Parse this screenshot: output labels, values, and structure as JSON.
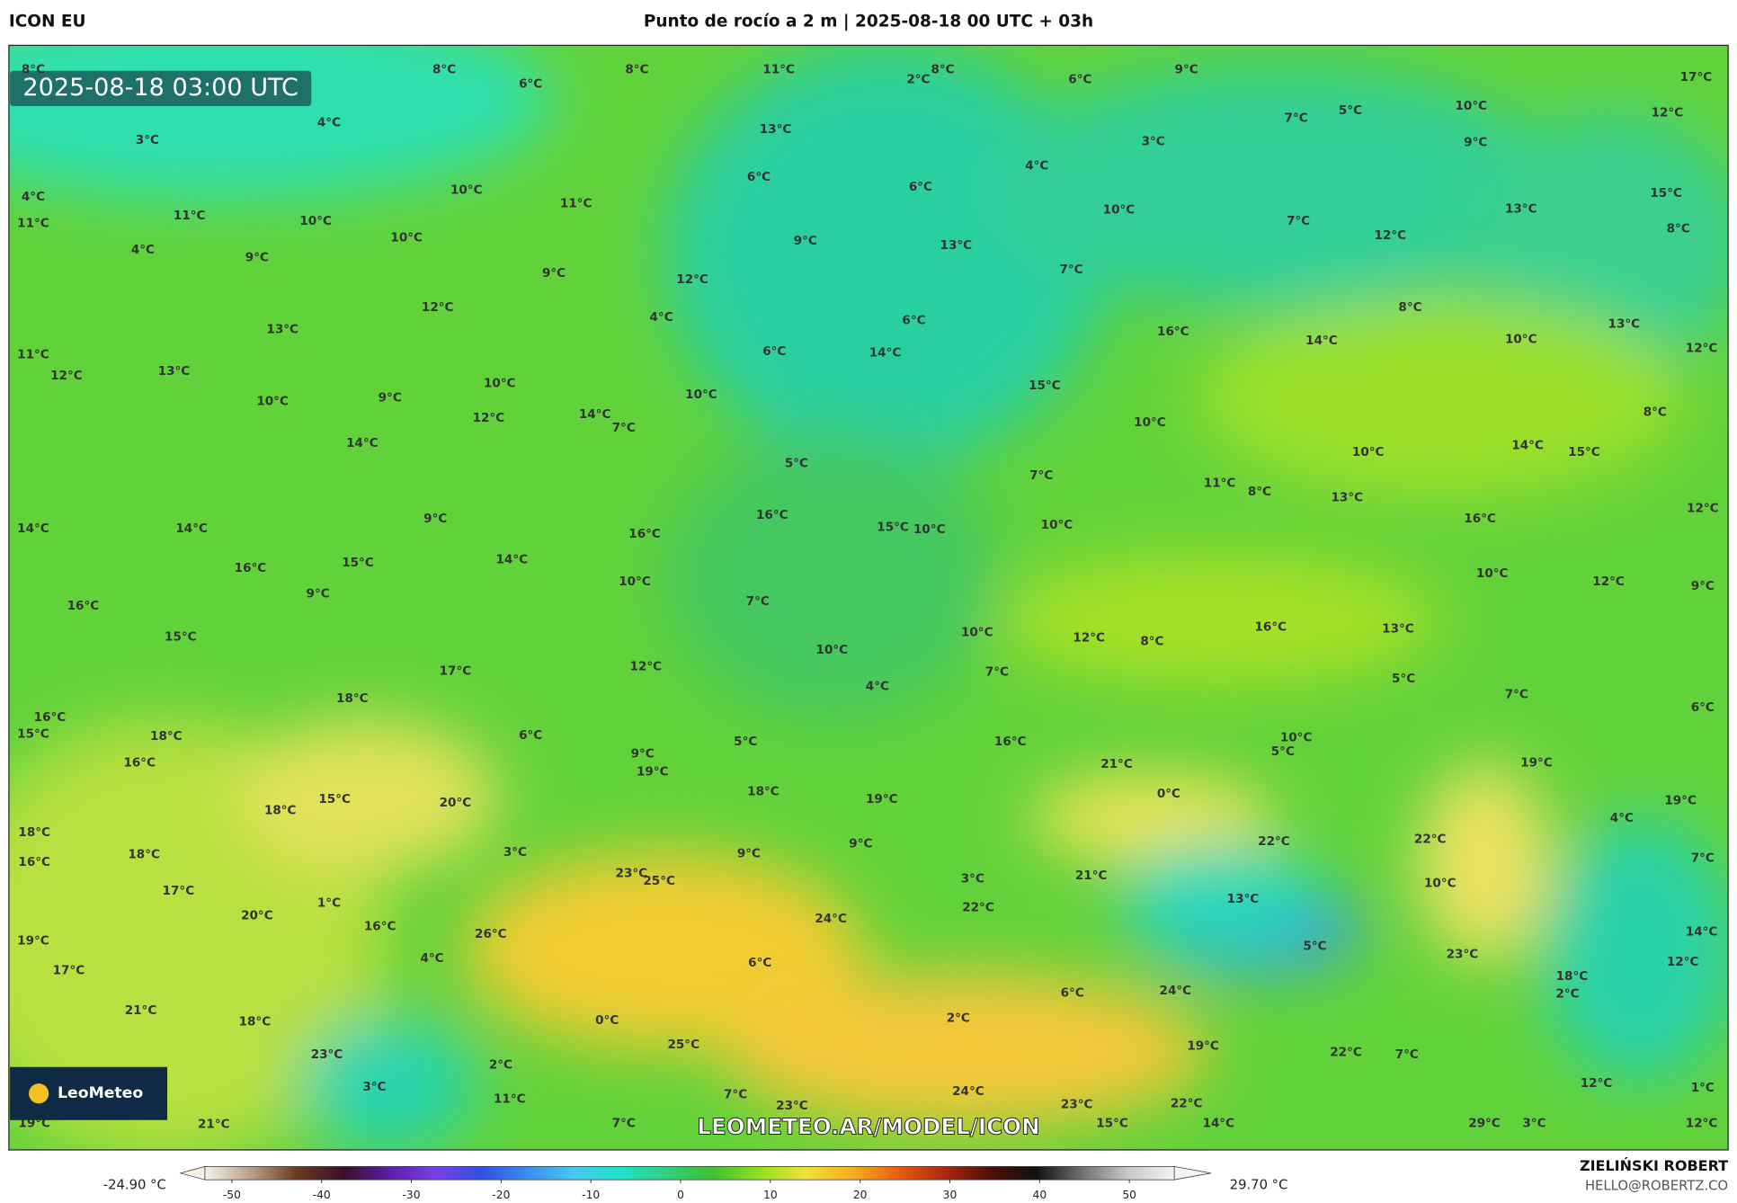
{
  "header": {
    "model": "ICON EU",
    "title": "Punto de rocío a 2 m | 2025-08-18 00 UTC + 03h"
  },
  "timestamp": "2025-08-18 03:00 UTC",
  "logo": "LeoMeteo",
  "watermark": "LEOMETEO.AR/MODEL/ICON",
  "credit": {
    "author": "ZIELIŃSKI ROBERT",
    "email": "HELLO@ROBERTZ.CO"
  },
  "colorbar": {
    "min_label": "-24.90 °C",
    "max_label": "29.70 °C",
    "lim": [
      -53,
      55
    ],
    "ticks": [
      -50,
      -40,
      -30,
      -20,
      -10,
      0,
      10,
      20,
      30,
      40,
      50
    ],
    "colors": [
      "#f6f1e6",
      "#b8a088",
      "#6b3a22",
      "#3a0f2a",
      "#5a1fa8",
      "#7a40e8",
      "#3050e0",
      "#3a8ff0",
      "#48c8f0",
      "#20e0c8",
      "#30d080",
      "#40c030",
      "#90e020",
      "#f0e040",
      "#f5b020",
      "#e86010",
      "#b02810",
      "#501008",
      "#101010",
      "#707070",
      "#c8c8c8",
      "#f4f4f4"
    ]
  },
  "map_labels": [
    "8°C",
    "6°C",
    "8°C",
    "11°C",
    "2°C",
    "8°C",
    "6°C",
    "9°C",
    "17°C",
    "4°C",
    "3°C",
    "13°C",
    "7°C",
    "5°C",
    "10°C",
    "12°C",
    "3°C",
    "9°C",
    "4°C",
    "6°C",
    "6°C",
    "10°C",
    "11°C",
    "15°C",
    "11°C",
    "13°C",
    "10°C",
    "7°C",
    "10°C",
    "10°C",
    "9°C",
    "13°C",
    "12°C",
    "8°C",
    "4°C",
    "9°C",
    "9°C",
    "12°C",
    "7°C",
    "12°C",
    "8°C",
    "4°C",
    "6°C",
    "16°C",
    "14°C",
    "13°C",
    "13°C",
    "11°C",
    "6°C",
    "14°C",
    "10°C",
    "12°C",
    "12°C",
    "13°C",
    "10°C",
    "10°C",
    "15°C",
    "10°C",
    "9°C",
    "12°C",
    "14°C",
    "7°C",
    "10°C",
    "8°C",
    "14°C",
    "5°C",
    "10°C",
    "14°C",
    "15°C",
    "7°C",
    "11°C",
    "8°C",
    "13°C",
    "12°C",
    "9°C",
    "16°C",
    "15°C",
    "10°C",
    "10°C",
    "16°C",
    "14°C",
    "14°C",
    "16°C",
    "14°C",
    "15°C",
    "16°C",
    "10°C",
    "10°C",
    "12°C",
    "9°C",
    "9°C",
    "16°C",
    "7°C",
    "15°C",
    "10°C",
    "12°C",
    "8°C",
    "16°C",
    "13°C",
    "10°C",
    "12°C",
    "17°C",
    "7°C",
    "5°C",
    "4°C",
    "18°C",
    "7°C",
    "6°C",
    "16°C",
    "15°C",
    "18°C",
    "6°C",
    "5°C",
    "16°C",
    "10°C",
    "5°C",
    "16°C",
    "9°C",
    "19°C",
    "21°C",
    "19°C",
    "15°C",
    "18°C",
    "19°C",
    "0°C",
    "20°C",
    "18°C",
    "19°C",
    "4°C",
    "18°C",
    "22°C",
    "22°C",
    "3°C",
    "9°C",
    "9°C",
    "18°C",
    "16°C",
    "7°C",
    "23°C",
    "25°C",
    "21°C",
    "3°C",
    "10°C",
    "17°C",
    "1°C",
    "13°C",
    "22°C",
    "20°C",
    "24°C",
    "16°C",
    "14°C",
    "19°C",
    "26°C",
    "5°C",
    "23°C",
    "4°C",
    "6°C",
    "12°C",
    "17°C",
    "18°C",
    "24°C",
    "6°C",
    "2°C",
    "21°C",
    "0°C",
    "18°C",
    "2°C",
    "25°C",
    "19°C",
    "23°C",
    "22°C",
    "7°C",
    "2°C",
    "3°C",
    "12°C",
    "24°C",
    "7°C",
    "11°C",
    "23°C",
    "23°C",
    "22°C",
    "1°C",
    "19°C",
    "21°C",
    "7°C",
    "15°C",
    "14°C",
    "29°C",
    "3°C",
    "12°C",
    "11°C",
    "4°C",
    "8°C"
  ]
}
